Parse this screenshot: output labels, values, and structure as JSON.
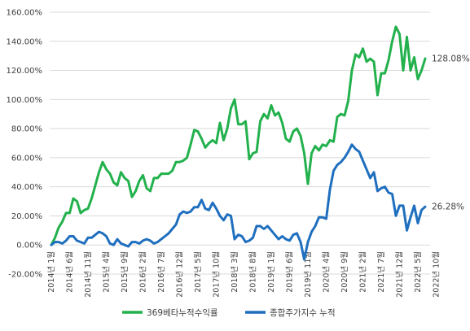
{
  "chart_data": {
    "type": "line",
    "title": "",
    "xlabel": "",
    "ylabel": "",
    "ylim": [
      -20,
      160
    ],
    "y_ticks": [
      "-20.00%",
      "0.00%",
      "20.00%",
      "40.00%",
      "60.00%",
      "80.00%",
      "100.00%",
      "120.00%",
      "140.00%",
      "160.00%"
    ],
    "grid": true,
    "legend_position": "bottom",
    "x_start": "2014-01",
    "x_end": "2022-12",
    "x_tick_labels": [
      "2014년 1월",
      "2014년 6월",
      "2014년 11월",
      "2015년 4월",
      "2015년 9월",
      "2016년 2월",
      "2016년 7월",
      "2016년 12월",
      "2017년 5월",
      "2017년 10월",
      "2018년 3월",
      "2018년 8월",
      "2019년 1월",
      "2019년 6월",
      "2019년 11월",
      "2020년 4월",
      "2020년 9월",
      "2021년 2월",
      "2021년 7월",
      "2021년 12월",
      "2022년 5월",
      "2022년 10월"
    ],
    "series": [
      {
        "name": "369베타누적수익률",
        "color": "#22b14c",
        "end_label": "128.08%",
        "values": [
          0,
          5,
          12,
          16,
          22,
          22,
          32,
          30,
          22,
          24,
          25,
          32,
          41,
          50,
          57,
          52,
          49,
          43,
          41,
          50,
          46,
          44,
          33,
          37,
          44,
          48,
          39,
          37,
          46,
          46,
          49,
          49,
          49,
          51,
          57,
          57,
          58,
          60,
          69,
          79,
          78,
          73,
          67,
          70,
          72,
          70,
          84,
          72,
          80,
          94,
          100,
          83,
          83,
          85,
          59,
          63,
          64,
          85,
          90,
          87,
          96,
          89,
          91,
          84,
          73,
          71,
          78,
          80,
          75,
          63,
          42,
          63,
          68,
          65,
          69,
          68,
          72,
          71,
          88,
          90,
          89,
          99,
          120,
          131,
          129,
          135,
          126,
          128,
          126,
          103,
          118,
          118,
          127,
          140,
          150,
          145,
          120,
          143,
          120,
          129,
          114,
          120,
          128.08
        ]
      },
      {
        "name": "종합주가지수 누적",
        "color": "#1f6fbf",
        "end_label": "26.28%",
        "values": [
          0,
          2,
          2,
          1,
          3,
          6,
          6,
          3,
          2,
          1,
          5,
          5,
          7,
          9,
          8,
          6,
          1,
          0,
          4,
          1,
          0,
          -1,
          2,
          2,
          1,
          3,
          4,
          3,
          1,
          2,
          4,
          6,
          8,
          11,
          14,
          21,
          23,
          22,
          23,
          26,
          26,
          31,
          25,
          24,
          29,
          25,
          20,
          17,
          21,
          20,
          4,
          7,
          6,
          2,
          3,
          5,
          13,
          13,
          11,
          13,
          10,
          7,
          4,
          6,
          4,
          3,
          7,
          8,
          2,
          -10,
          2,
          9,
          13,
          19,
          19,
          18,
          38,
          51,
          55,
          57,
          60,
          64,
          69,
          66,
          64,
          58,
          52,
          46,
          50,
          37,
          39,
          40,
          36,
          35,
          20,
          27,
          27,
          10,
          19,
          27,
          15,
          24,
          26.28
        ]
      }
    ]
  }
}
